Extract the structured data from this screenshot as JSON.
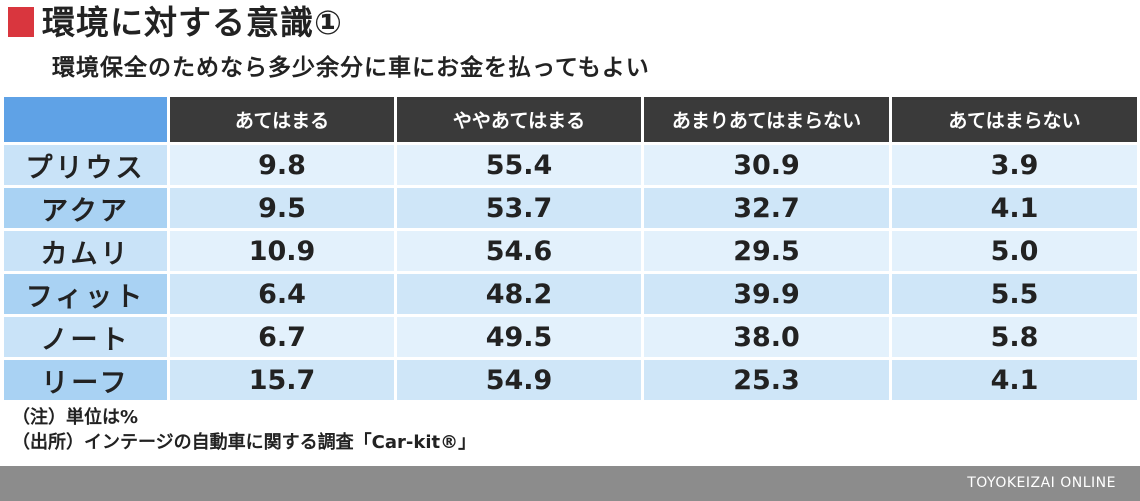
{
  "colors": {
    "accent": "#d9363e",
    "header_bg": "#3a3a3a",
    "corner_bg": "#5fa2e6",
    "row_label_bg": "#a9d2f3",
    "row_label_bg_alt": "#c9e3f8",
    "cell_bg": "#e3f1fc",
    "cell_bg_alt": "#cfe6f8",
    "footer_bg": "#8c8c8c"
  },
  "title": "環境に対する意識①",
  "subtitle": "環境保全のためなら多少余分に車にお金を払ってもよい",
  "chart_data": {
    "type": "table",
    "unit": "%",
    "columns": [
      "あてはまる",
      "ややあてはまる",
      "あまりあてはまらない",
      "あてはまらない"
    ],
    "rows": [
      {
        "label": "プリウス",
        "values": [
          "9.8",
          "55.4",
          "30.9",
          "3.9"
        ]
      },
      {
        "label": "アクア",
        "values": [
          "9.5",
          "53.7",
          "32.7",
          "4.1"
        ]
      },
      {
        "label": "カムリ",
        "values": [
          "10.9",
          "54.6",
          "29.5",
          "5.0"
        ]
      },
      {
        "label": "フィット",
        "values": [
          "6.4",
          "48.2",
          "39.9",
          "5.5"
        ]
      },
      {
        "label": "ノート",
        "values": [
          "6.7",
          "49.5",
          "38.0",
          "5.8"
        ]
      },
      {
        "label": "リーフ",
        "values": [
          "15.7",
          "54.9",
          "25.3",
          "4.1"
        ]
      }
    ]
  },
  "notes": {
    "unit_note": "（注）単位は%",
    "source": "（出所）インテージの自動車に関する調査「Car-kit®」"
  },
  "footer": {
    "brand": "TOYOKEIZAI ONLINE"
  }
}
